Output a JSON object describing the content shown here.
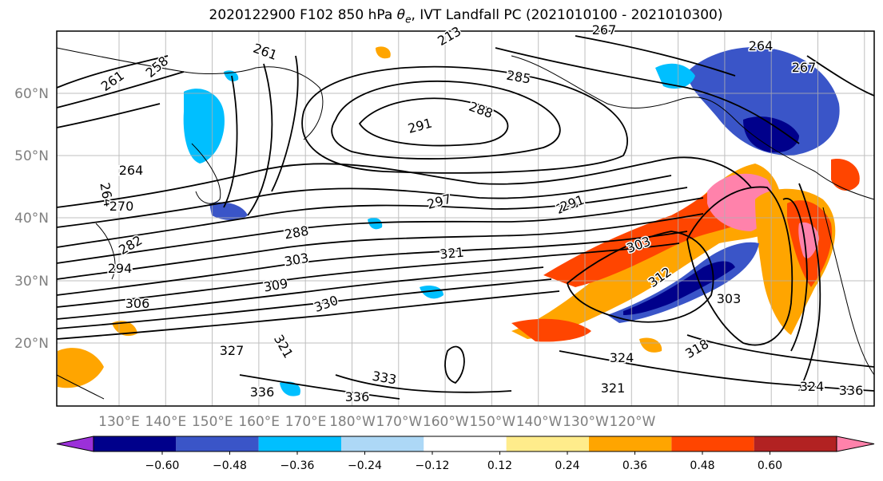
{
  "title": {
    "prefix": "2020122900 F102 850 hPa ",
    "theta_symbol": "θ",
    "theta_sub": "e",
    "suffix": ", IVT Landfall PC (2021010100 - 2021010300)"
  },
  "map": {
    "lat_ticks": [
      "60°N",
      "50°N",
      "40°N",
      "30°N",
      "20°N"
    ],
    "lon_ticks": [
      "130°E",
      "140°E",
      "150°E",
      "160°E",
      "170°E",
      "180°W",
      "170°W",
      "160°W",
      "150°W",
      "140°W",
      "130°W",
      "120°W"
    ],
    "contour_labels": [
      "261",
      "258",
      "261",
      "264",
      "264",
      "270",
      "282",
      "294",
      "306",
      "288",
      "303",
      "309",
      "291",
      "288",
      "285",
      "291",
      "297",
      "291",
      "321",
      "303",
      "312",
      "303",
      "330",
      "327",
      "321",
      "333",
      "336",
      "336",
      "324",
      "321",
      "318",
      "324",
      "264",
      "267",
      "213",
      "267",
      "336"
    ]
  },
  "colorbar": {
    "labels": [
      "−0.60",
      "−0.48",
      "−0.36",
      "−0.24",
      "−0.12",
      "0.12",
      "0.24",
      "0.36",
      "0.48",
      "0.60"
    ],
    "colors": [
      "#9b30d9",
      "#00008b",
      "#3a55c8",
      "#00bfff",
      "#add8f6",
      "#ffffff",
      "#ffec8b",
      "#ffa500",
      "#ff4500",
      "#b22222",
      "#ff82ab"
    ]
  }
}
